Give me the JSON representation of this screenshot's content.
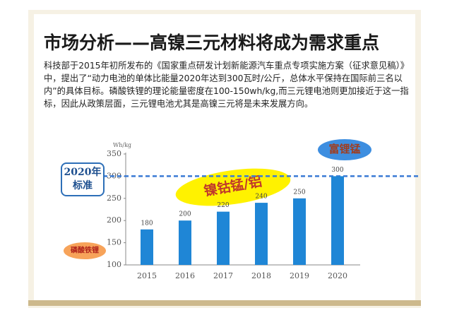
{
  "slide": {
    "title": "市场分析——高镍三元材料将成为需求重点",
    "text": "科技部于2015年初所发布的《国家重点研发计划新能源汽车重点专项实施方案（征求意见稿）》中，提出了“动力电池的单体比能量2020年达到300瓦时/公斤，总体水平保持在国际前三名以内”的具体目标。磷酸铁锂的理论能量密度在100-150wh/kg,而三元锂电池则更加接近于这一指标，因此从政策层面，三元锂电池尤其是高镍三元将是未来发展方向。"
  },
  "chart_data": {
    "type": "bar",
    "y_label": "Wh/kg",
    "categories": [
      "2015",
      "2016",
      "2017",
      "2018",
      "2019",
      "2020"
    ],
    "values": [
      180,
      200,
      220,
      240,
      250,
      300
    ],
    "color": "#1f86d6",
    "ylim": [
      100,
      350
    ],
    "yticks": [
      100,
      150,
      200,
      250,
      300,
      350
    ],
    "reference_line": {
      "value": 300,
      "label": "2020年标准"
    },
    "annotations": [
      "富锂锰",
      "镍钴锰/铝",
      "磷酸铁锂"
    ]
  }
}
